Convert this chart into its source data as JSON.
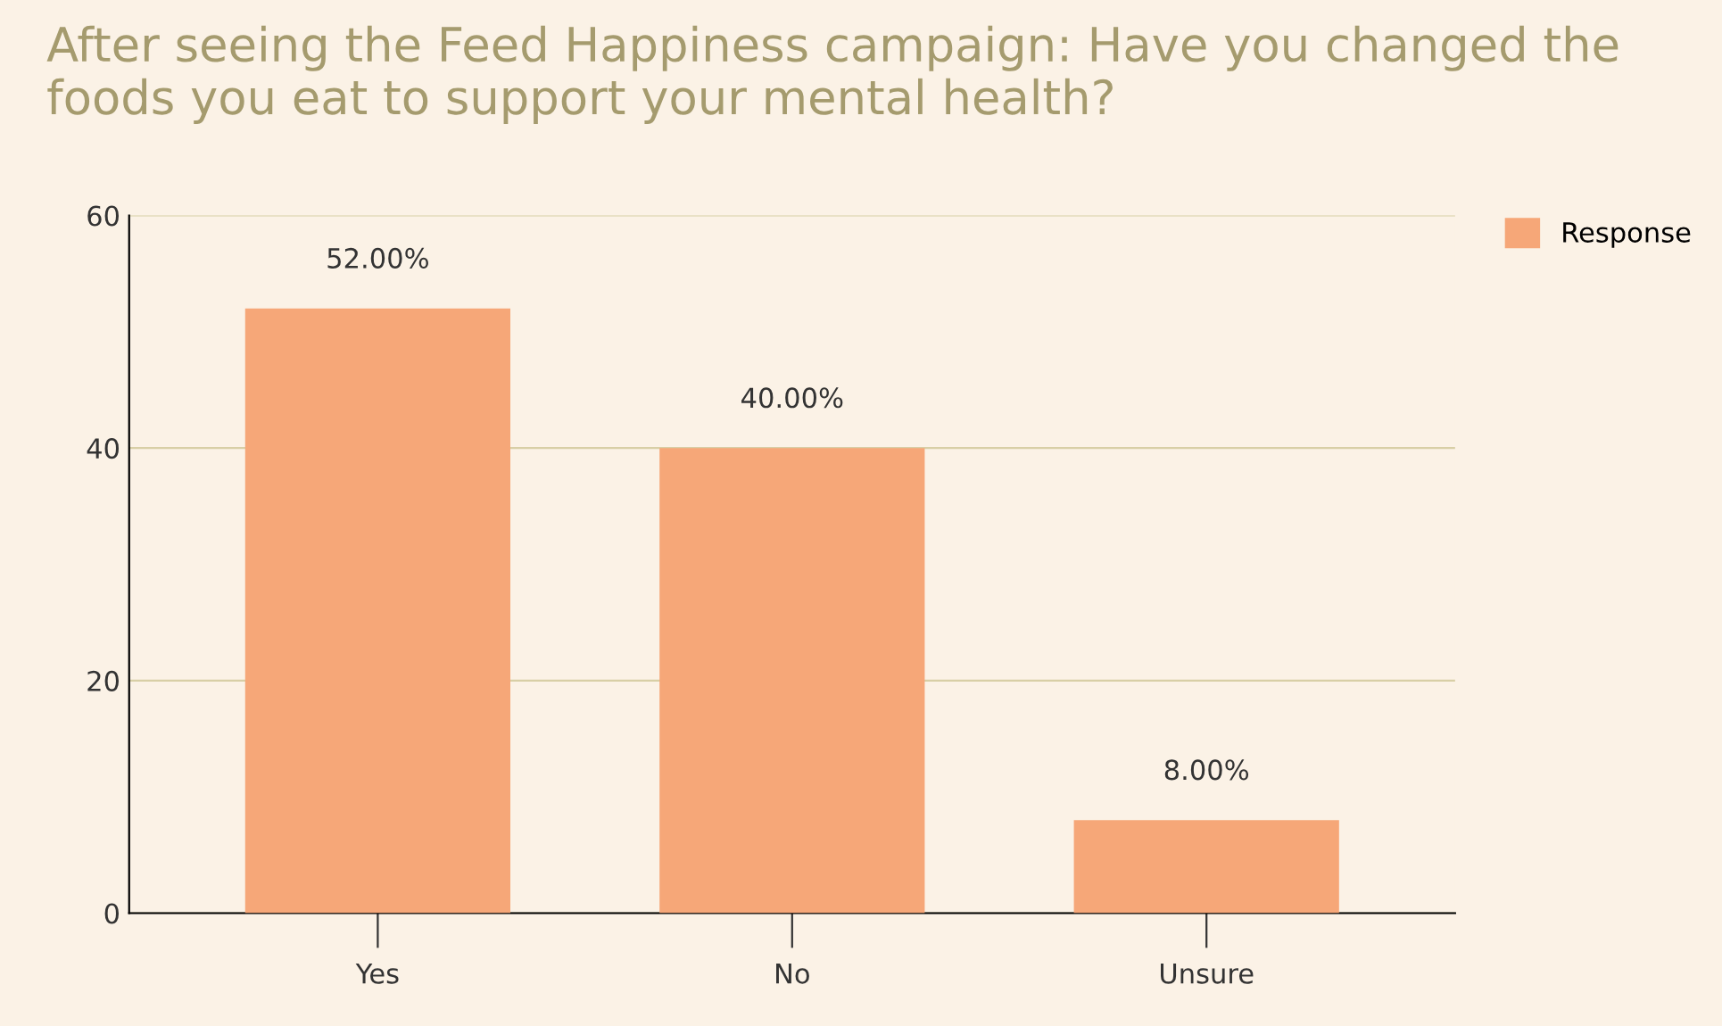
{
  "chart_data": {
    "type": "bar",
    "title": "After seeing the Feed Happiness campaign: Have you changed the foods you eat to support your mental health?",
    "categories": [
      "Yes",
      "No",
      "Unsure"
    ],
    "series": [
      {
        "name": "Response",
        "color": "#f6a778",
        "values": [
          52,
          40,
          8
        ],
        "value_labels": [
          "52.00%",
          "40.00%",
          "8.00%"
        ]
      }
    ],
    "ylim": [
      0,
      60
    ],
    "yticks": [
      0,
      20,
      40,
      60
    ],
    "grid": "y",
    "legend": "top right"
  }
}
